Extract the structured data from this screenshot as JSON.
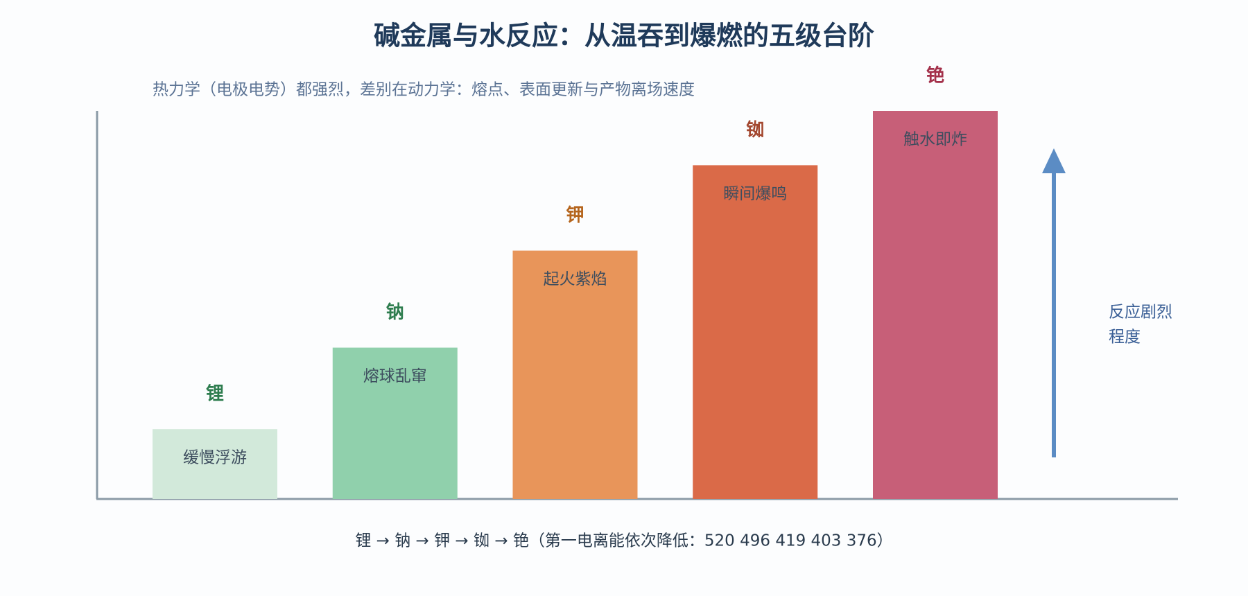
{
  "chart_data": {
    "type": "bar",
    "title": "碱金属与水反应：从温吞到爆燃的五级台阶",
    "subtitle": "热力学（电极电势）都强烈，差别在动力学：熔点、表面更新与产物离场速度",
    "categories": [
      "锂",
      "钠",
      "钾",
      "铷",
      "铯"
    ],
    "category_colors": [
      "#2e7d4f",
      "#2e7d4f",
      "#b5651d",
      "#a3472f",
      "#a3304a"
    ],
    "descriptions": [
      "缓慢浮游",
      "熔球乱窜",
      "起火紫焰",
      "瞬间爆鸣",
      "触水即炸"
    ],
    "values": [
      18,
      39,
      64,
      86,
      100
    ],
    "colors": [
      "#d2e9da",
      "#90d0ac",
      "#e8955a",
      "#da6a48",
      "#c75f78"
    ],
    "ylim": [
      0,
      100
    ],
    "arrow_label": [
      "反应剧烈",
      "程度"
    ],
    "footer": "锂 → 钠 → 钾 → 铷 → 铯（第一电离能依次降低：520 496 419 403 376）"
  }
}
